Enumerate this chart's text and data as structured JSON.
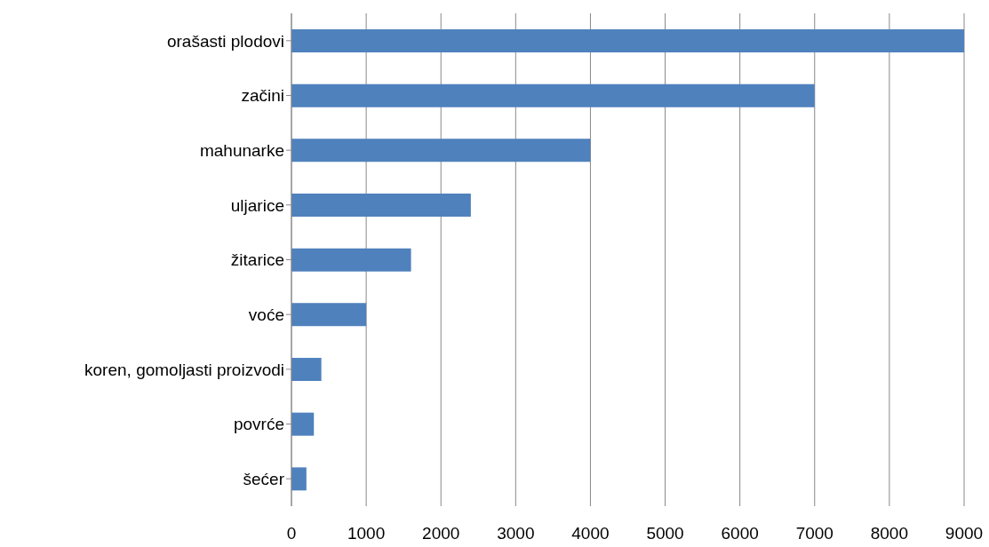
{
  "chart_data": {
    "type": "bar",
    "orientation": "horizontal",
    "categories": [
      "orašasti plodovi",
      "začini",
      "mahunarke",
      "uljarice",
      "žitarice",
      "voće",
      "koren, gomoljasti proizvodi",
      "povrće",
      "šećer"
    ],
    "values": [
      9000,
      7000,
      4000,
      2400,
      1600,
      1000,
      400,
      300,
      200
    ],
    "color": "#4f81bd",
    "xlim": [
      0,
      9000
    ],
    "xticks": [
      0,
      1000,
      2000,
      3000,
      4000,
      5000,
      6000,
      7000,
      8000,
      9000
    ],
    "grid": "x"
  }
}
